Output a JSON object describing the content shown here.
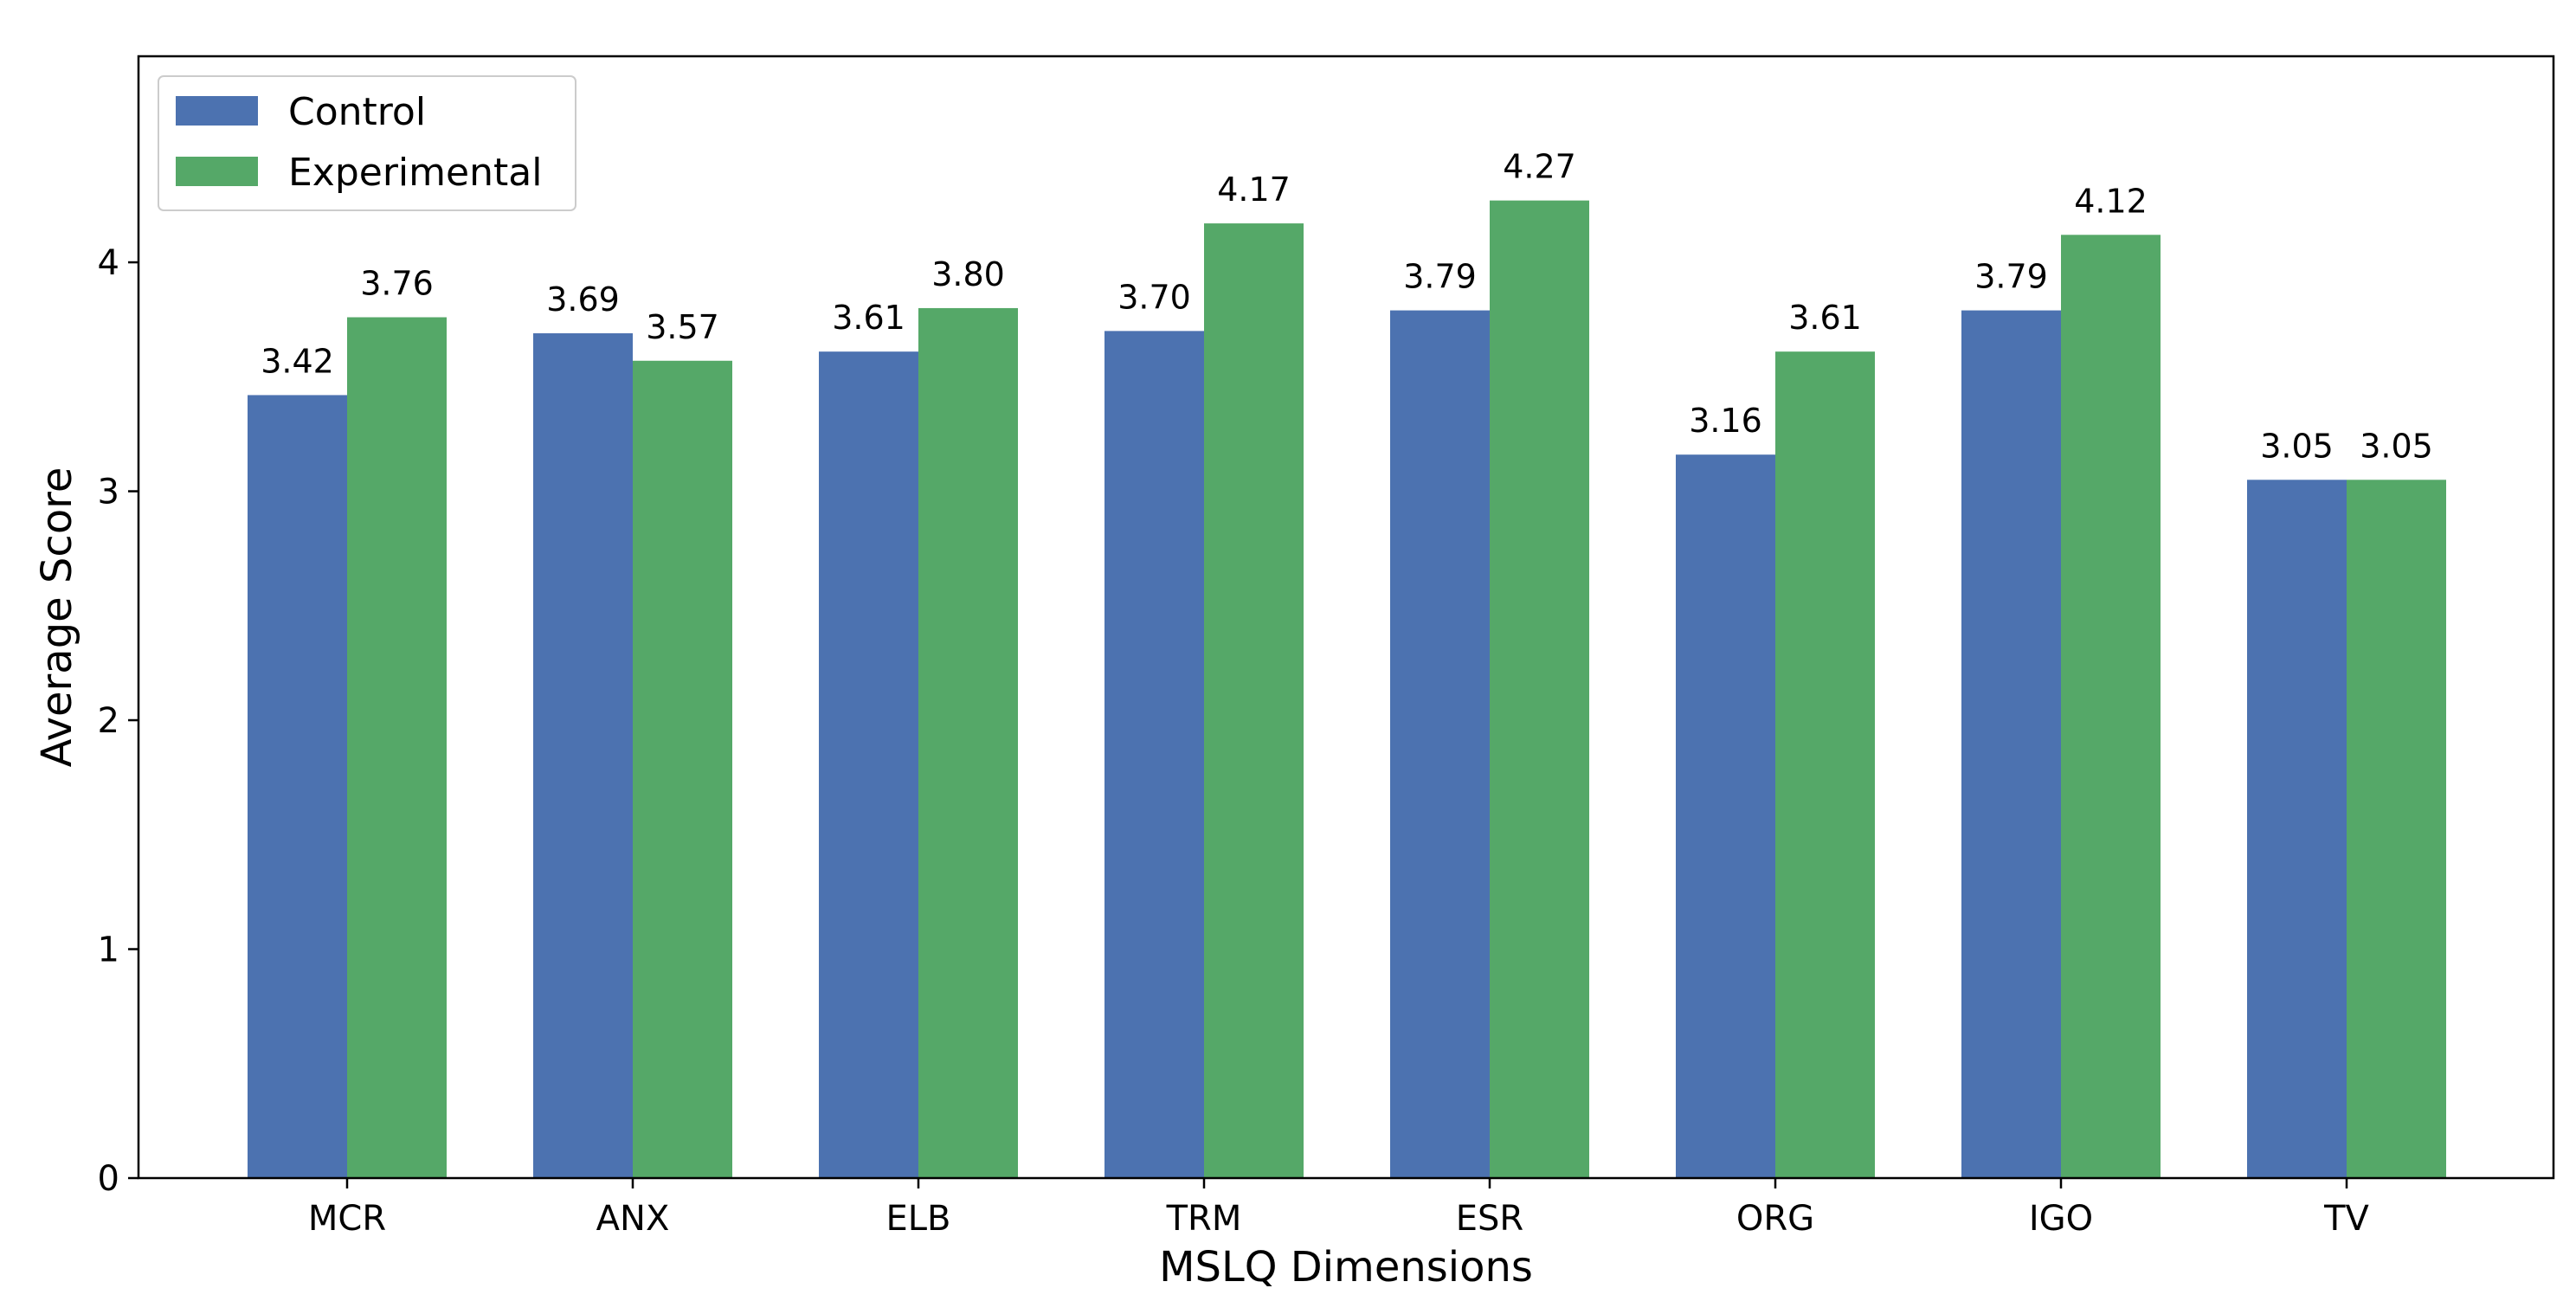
{
  "chart_data": {
    "type": "bar",
    "title": "",
    "xlabel": "MSLQ Dimensions",
    "ylabel": "Average Score",
    "categories": [
      "MCR",
      "ANX",
      "ELB",
      "TRM",
      "ESR",
      "ORG",
      "IGO",
      "TV"
    ],
    "series": [
      {
        "name": "Control",
        "color": "#4c72b0",
        "values": [
          3.42,
          3.69,
          3.61,
          3.7,
          3.79,
          3.16,
          3.79,
          3.05
        ],
        "labels": [
          "3.42",
          "3.69",
          "3.61",
          "3.70",
          "3.79",
          "3.16",
          "3.79",
          "3.05"
        ]
      },
      {
        "name": "Experimental",
        "color": "#55a868",
        "values": [
          3.76,
          3.57,
          3.8,
          4.17,
          4.27,
          3.61,
          4.12,
          3.05
        ],
        "labels": [
          "3.76",
          "3.57",
          "3.80",
          "4.17",
          "4.27",
          "3.61",
          "4.12",
          "3.05"
        ]
      }
    ],
    "ylim": [
      0,
      4.9
    ],
    "yticks": [
      0,
      1,
      2,
      3,
      4
    ],
    "ytick_labels": [
      "0",
      "1",
      "2",
      "3",
      "4"
    ],
    "grid": false,
    "legend_position": "top-left"
  }
}
